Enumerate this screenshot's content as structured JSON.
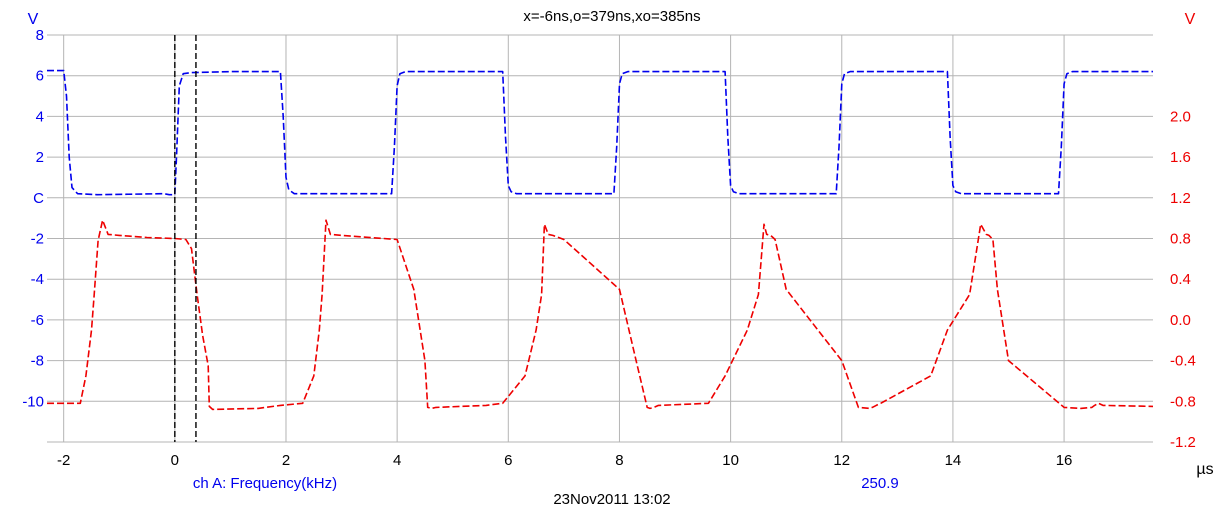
{
  "header": {
    "left_unit": "V",
    "right_unit": "V",
    "cursor_readout": "x=-6ns,o=379ns,xo=385ns"
  },
  "footer": {
    "x_unit": "µs",
    "channel_label": "ch A: Frequency(kHz)",
    "channel_value": "250.9",
    "timestamp": "23Nov2011  13:02"
  },
  "colors": {
    "blue_trace": "#0000ee",
    "red_trace": "#ee0000",
    "cursor": "#000000",
    "grid": "#b4b4b4",
    "tick_text": "#000000"
  },
  "chart_data": {
    "type": "line",
    "x_unit": "µs",
    "xlim": [
      -2.3,
      17.6
    ],
    "x_ticks": [
      -2,
      0,
      2,
      4,
      6,
      8,
      10,
      12,
      14,
      16
    ],
    "left_axis": {
      "unit": "V",
      "ylim": [
        -12,
        8
      ],
      "ticks": [
        8,
        6,
        4,
        2,
        0,
        -2,
        -4,
        -6,
        -8,
        -10
      ],
      "tick_labels": [
        "8",
        "6",
        "4",
        "2",
        "C",
        "-2",
        "-4",
        "-6",
        "-8",
        "-10"
      ]
    },
    "right_axis": {
      "unit": "V",
      "ylim": [
        -1.2,
        2.8
      ],
      "ticks": [
        2.0,
        1.6,
        1.2,
        0.8,
        0.4,
        0.0,
        -0.4,
        -0.8,
        -1.2
      ],
      "tick_labels": [
        "2.0",
        "1.6",
        "1.2",
        "0.8",
        "0.4",
        "0.0",
        "-0.4",
        "-0.8",
        "-1.2"
      ]
    },
    "cursors_us": [
      0.0,
      0.38
    ],
    "series": [
      {
        "axis": "left",
        "color": "#0000ee",
        "dash": "dashed",
        "x": [
          -2.3,
          -2.0,
          -1.95,
          -1.9,
          -1.85,
          -1.75,
          -1.4,
          -0.2,
          -0.1,
          0.0,
          0.03,
          0.08,
          0.15,
          0.3,
          1.0,
          1.9,
          1.95,
          2.0,
          2.05,
          2.15,
          3.9,
          3.95,
          4.0,
          4.05,
          4.15,
          5.9,
          5.95,
          6.0,
          6.05,
          6.15,
          7.9,
          7.95,
          8.0,
          8.05,
          8.15,
          9.9,
          9.95,
          10.0,
          10.05,
          10.15,
          11.9,
          11.95,
          12.0,
          12.05,
          12.15,
          13.9,
          13.95,
          14.0,
          14.05,
          14.15,
          15.9,
          15.95,
          16.0,
          16.05,
          16.15,
          17.6
        ],
        "y": [
          6.25,
          6.25,
          5.0,
          2.0,
          0.5,
          0.2,
          0.15,
          0.2,
          0.15,
          0.15,
          2.0,
          5.5,
          6.1,
          6.15,
          6.2,
          6.2,
          4.0,
          1.0,
          0.4,
          0.2,
          0.2,
          2.5,
          5.5,
          6.1,
          6.2,
          6.2,
          3.0,
          0.6,
          0.3,
          0.2,
          0.2,
          2.5,
          5.6,
          6.1,
          6.2,
          6.2,
          3.0,
          0.6,
          0.3,
          0.2,
          0.2,
          2.5,
          5.6,
          6.1,
          6.2,
          6.2,
          3.0,
          0.6,
          0.3,
          0.2,
          0.2,
          2.5,
          5.6,
          6.1,
          6.2,
          6.2
        ]
      },
      {
        "axis": "right",
        "color": "#ee0000",
        "dash": "dashed",
        "x": [
          -2.3,
          -1.7,
          -1.6,
          -1.5,
          -1.45,
          -1.38,
          -1.3,
          -1.2,
          -1.0,
          -0.5,
          0.0,
          0.2,
          0.3,
          0.4,
          0.5,
          0.6,
          0.62,
          0.68,
          1.5,
          1.9,
          2.3,
          2.5,
          2.6,
          2.65,
          2.72,
          2.8,
          3.0,
          4.0,
          4.3,
          4.5,
          4.55,
          4.62,
          4.7,
          5.6,
          5.9,
          6.3,
          6.5,
          6.6,
          6.65,
          6.72,
          6.8,
          7.0,
          8.0,
          8.3,
          8.5,
          8.55,
          8.62,
          8.7,
          9.6,
          9.9,
          10.3,
          10.5,
          10.6,
          10.65,
          10.72,
          10.8,
          11.0,
          12.0,
          12.3,
          12.5,
          12.55,
          12.62,
          12.7,
          13.6,
          13.9,
          14.3,
          14.5,
          14.6,
          14.65,
          14.72,
          14.8,
          15.0,
          16.0,
          16.3,
          16.5,
          16.55,
          16.62,
          16.7,
          17.6
        ],
        "y": [
          -0.82,
          -0.82,
          -0.55,
          -0.1,
          0.25,
          0.78,
          0.98,
          0.84,
          0.83,
          0.81,
          0.8,
          0.79,
          0.7,
          0.25,
          -0.15,
          -0.45,
          -0.85,
          -0.88,
          -0.87,
          -0.84,
          -0.82,
          -0.55,
          -0.1,
          0.25,
          0.98,
          0.84,
          0.83,
          0.79,
          0.3,
          -0.4,
          -0.86,
          -0.87,
          -0.86,
          -0.84,
          -0.82,
          -0.55,
          -0.1,
          0.25,
          0.94,
          0.84,
          0.83,
          0.79,
          0.3,
          -0.4,
          -0.86,
          -0.87,
          -0.86,
          -0.84,
          -0.82,
          -0.55,
          -0.1,
          0.25,
          0.94,
          0.84,
          0.83,
          0.79,
          0.3,
          -0.4,
          -0.86,
          -0.87,
          -0.86,
          -0.84,
          -0.82,
          -0.55,
          -0.1,
          0.25,
          0.94,
          0.84,
          0.83,
          0.79,
          0.3,
          -0.4,
          -0.86,
          -0.87,
          -0.86,
          -0.84,
          -0.82,
          -0.84,
          -0.85
        ]
      }
    ]
  }
}
